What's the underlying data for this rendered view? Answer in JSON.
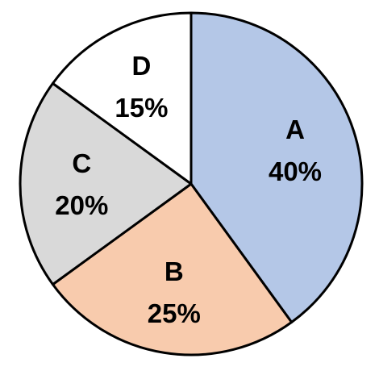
{
  "chart_data": {
    "type": "pie",
    "start_angle": "12 o'clock",
    "direction": "clockwise",
    "legend": "none",
    "slices": [
      {
        "name": "A",
        "value": 40,
        "value_label": "40%",
        "color": "#b4c7e7"
      },
      {
        "name": "B",
        "value": 25,
        "value_label": "25%",
        "color": "#f8cbad"
      },
      {
        "name": "C",
        "value": 20,
        "value_label": "20%",
        "color": "#d9d9d9"
      },
      {
        "name": "D",
        "value": 15,
        "value_label": "15%",
        "color": "#ffffff"
      }
    ]
  }
}
